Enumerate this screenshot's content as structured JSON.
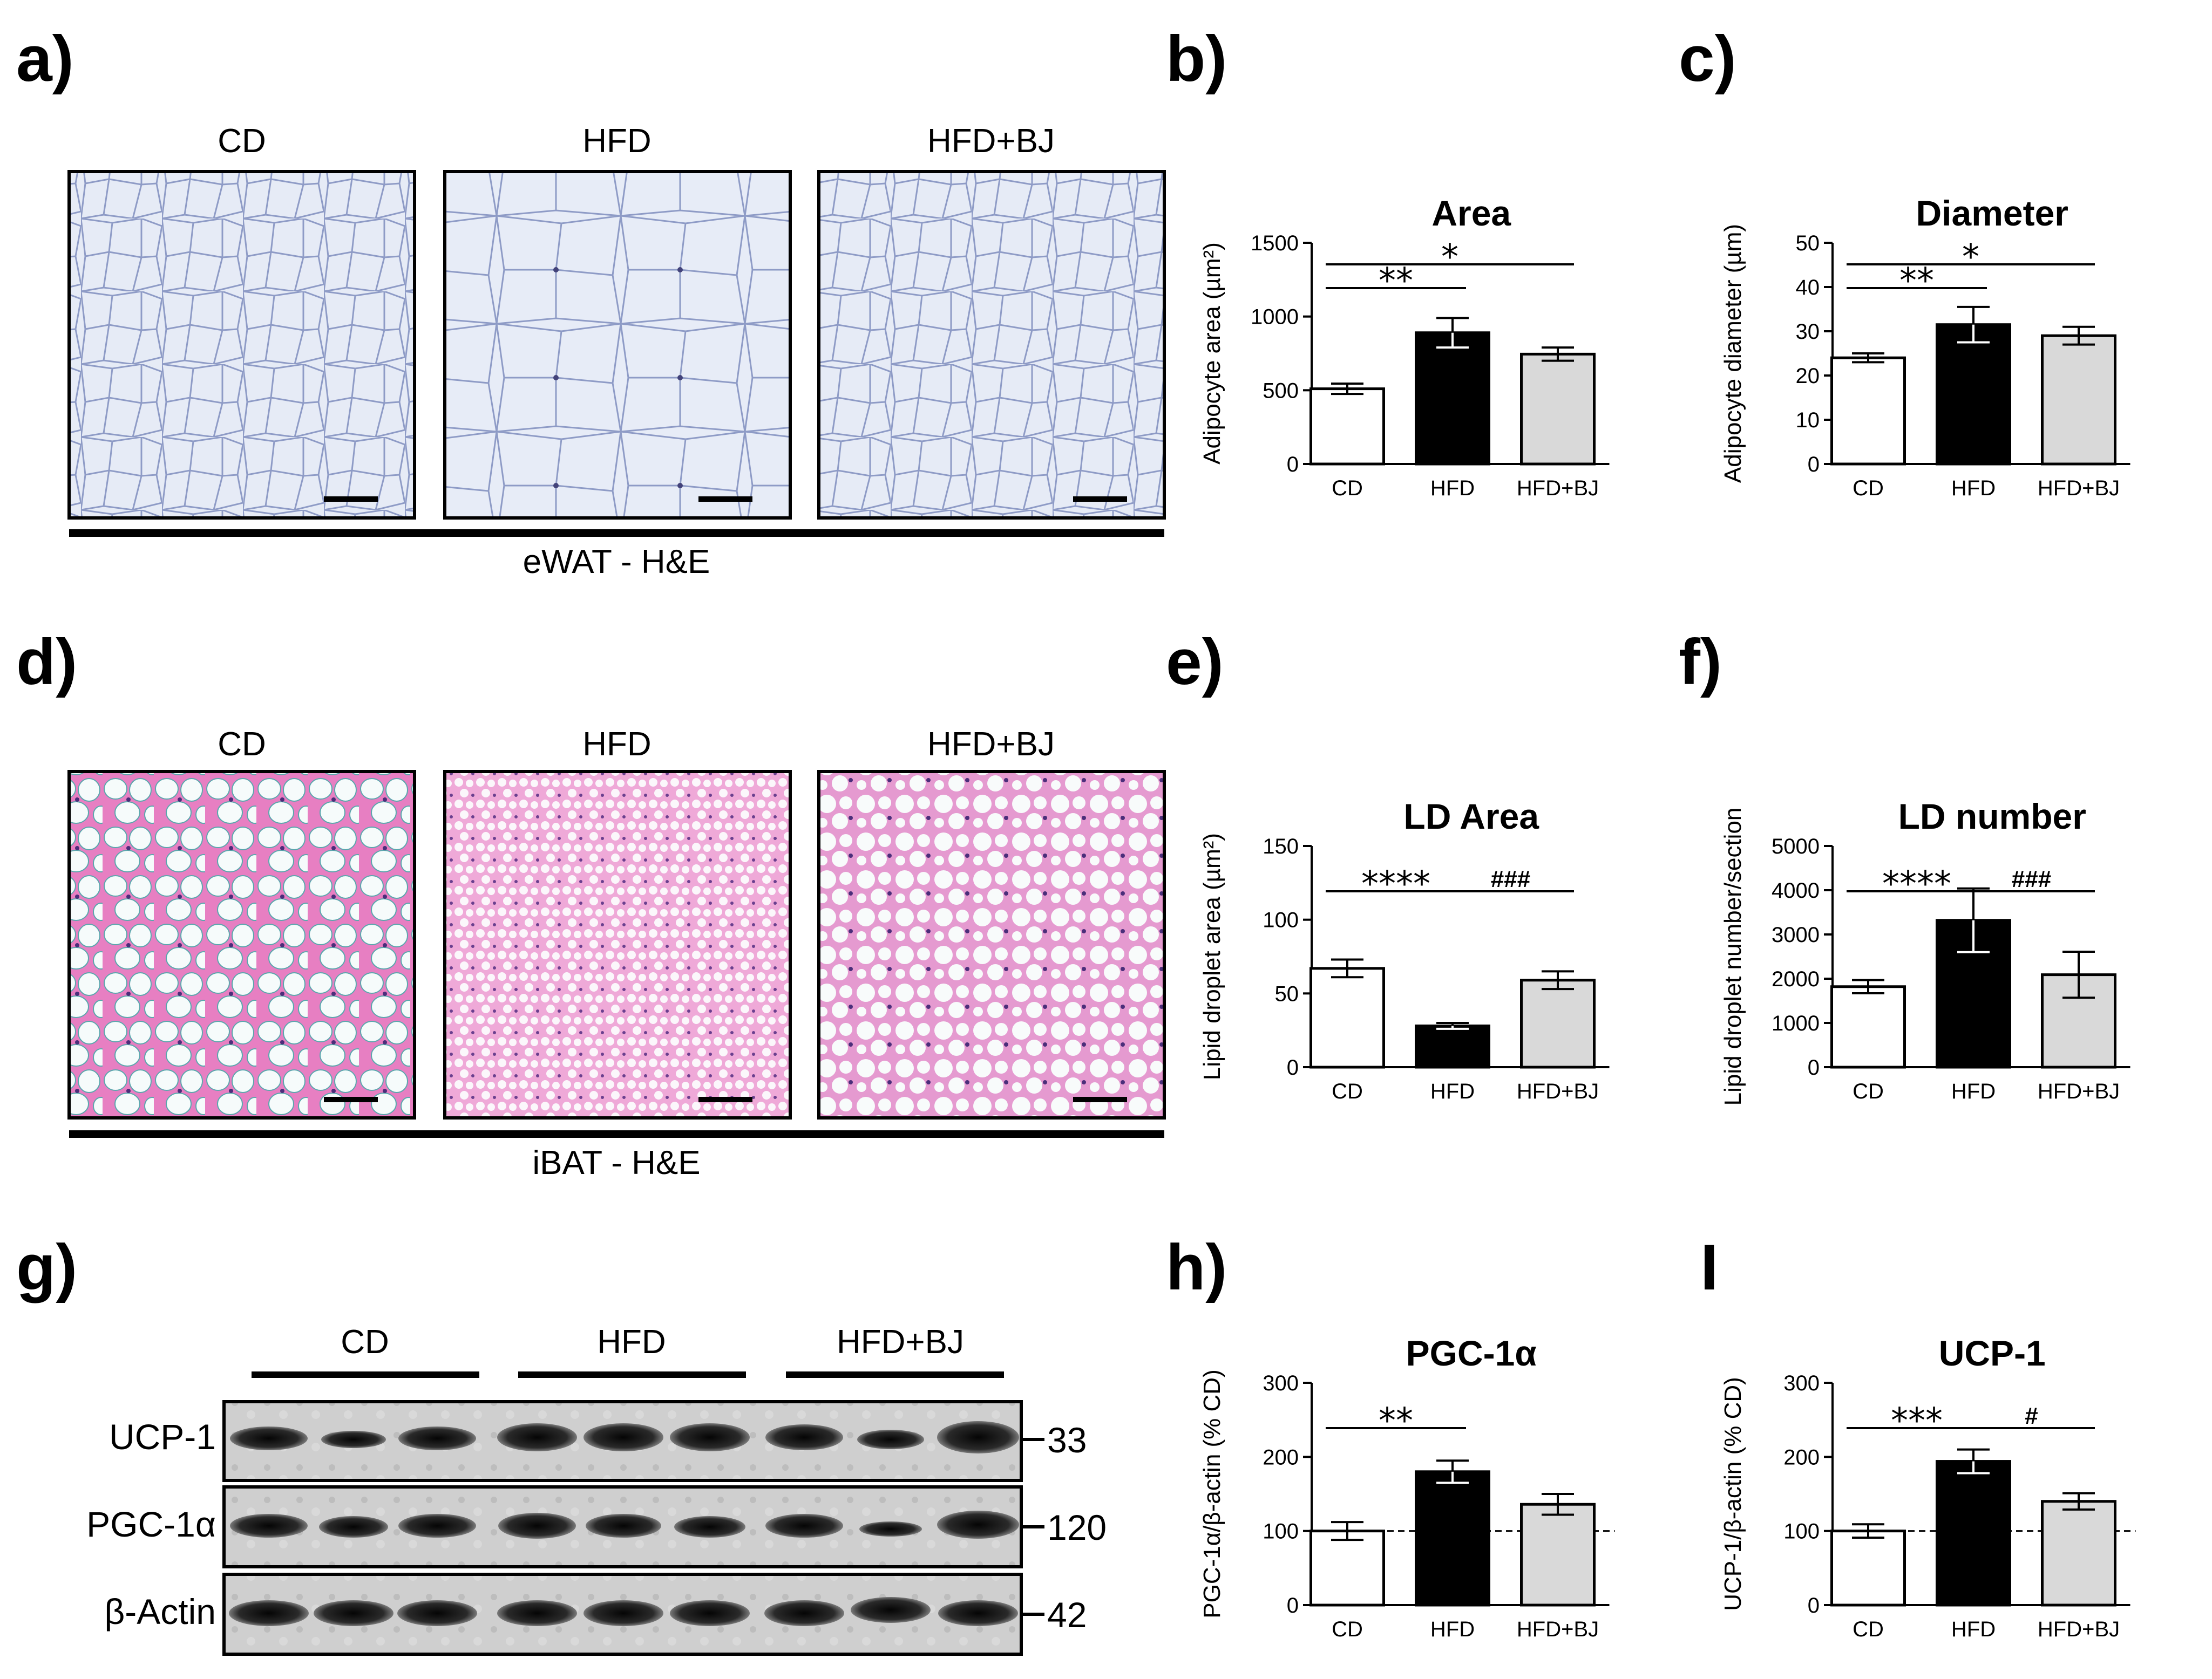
{
  "panels": {
    "a": {
      "label": "a)",
      "groups": [
        "CD",
        "HFD",
        "HFD+BJ"
      ],
      "caption": "eWAT - H&E"
    },
    "d": {
      "label": "d)",
      "groups": [
        "CD",
        "HFD",
        "HFD+BJ"
      ],
      "caption": "iBAT - H&E"
    },
    "g": {
      "label": "g)",
      "groups": [
        "CD",
        "HFD",
        "HFD+BJ"
      ],
      "rows": [
        {
          "name": "UCP-1",
          "kda": "33"
        },
        {
          "name": "PGC-1α",
          "kda": "120"
        },
        {
          "name": "β-Actin",
          "kda": "42"
        }
      ]
    }
  },
  "chart_data": [
    {
      "id": "b",
      "panel_label": "b)",
      "type": "bar",
      "title": "Area",
      "ylabel": "Adipocyte area (µm²)",
      "categories": [
        "CD",
        "HFD",
        "HFD+BJ"
      ],
      "values": [
        510,
        890,
        745
      ],
      "errors": [
        35,
        100,
        45
      ],
      "ylim": [
        0,
        1500
      ],
      "yticks": [
        0,
        500,
        1000,
        1500
      ],
      "bar_colors": [
        "#ffffff",
        "#000000",
        "#d9d9d9"
      ],
      "significance": [
        {
          "from": 0,
          "to": 1,
          "text": "**",
          "level": 1
        },
        {
          "from": 0,
          "to": 2,
          "text": "*",
          "level": 2
        }
      ]
    },
    {
      "id": "c",
      "panel_label": "c)",
      "type": "bar",
      "title": "Diameter",
      "ylabel": "Adipocyte diameter (µm)",
      "categories": [
        "CD",
        "HFD",
        "HFD+BJ"
      ],
      "values": [
        24,
        31.5,
        29
      ],
      "errors": [
        1,
        4,
        2
      ],
      "ylim": [
        0,
        50
      ],
      "yticks": [
        0,
        10,
        20,
        30,
        40,
        50
      ],
      "bar_colors": [
        "#ffffff",
        "#000000",
        "#d9d9d9"
      ],
      "significance": [
        {
          "from": 0,
          "to": 1,
          "text": "**",
          "level": 1
        },
        {
          "from": 0,
          "to": 2,
          "text": "*",
          "level": 2
        }
      ]
    },
    {
      "id": "e",
      "panel_label": "e)",
      "type": "bar",
      "title": "LD Area",
      "ylabel": "Lipid droplet area (µm²)",
      "categories": [
        "CD",
        "HFD",
        "HFD+BJ"
      ],
      "values": [
        67,
        28,
        59
      ],
      "errors": [
        6,
        2,
        6
      ],
      "ylim": [
        0,
        150
      ],
      "yticks": [
        0,
        50,
        100,
        150
      ],
      "bar_colors": [
        "#ffffff",
        "#000000",
        "#d9d9d9"
      ],
      "significance": [
        {
          "from": 0,
          "to": 1,
          "text": "****",
          "level": 1
        },
        {
          "from": 1,
          "to": 2,
          "text": "###",
          "level": 1
        }
      ]
    },
    {
      "id": "f",
      "panel_label": "f)",
      "type": "bar",
      "title": "LD number",
      "ylabel": "Lipid droplet number/section",
      "categories": [
        "CD",
        "HFD",
        "HFD+BJ"
      ],
      "values": [
        1820,
        3320,
        2090
      ],
      "errors": [
        150,
        720,
        520
      ],
      "ylim": [
        0,
        5000
      ],
      "yticks": [
        0,
        1000,
        2000,
        3000,
        4000,
        5000
      ],
      "bar_colors": [
        "#ffffff",
        "#000000",
        "#d9d9d9"
      ],
      "significance": [
        {
          "from": 0,
          "to": 1,
          "text": "****",
          "level": 1
        },
        {
          "from": 1,
          "to": 2,
          "text": "###",
          "level": 1
        }
      ]
    },
    {
      "id": "h",
      "panel_label": "h)",
      "type": "bar",
      "title": "PGC-1α",
      "ylabel": "PGC-1α/β-actin (% CD)",
      "categories": [
        "CD",
        "HFD",
        "HFD+BJ"
      ],
      "values": [
        100,
        180,
        136
      ],
      "errors": [
        12,
        15,
        14
      ],
      "ylim": [
        0,
        300
      ],
      "yticks": [
        0,
        100,
        200,
        300
      ],
      "reference_line": 100,
      "bar_colors": [
        "#ffffff",
        "#000000",
        "#d9d9d9"
      ],
      "significance": [
        {
          "from": 0,
          "to": 1,
          "text": "**",
          "level": 1
        }
      ]
    },
    {
      "id": "i",
      "panel_label": "I",
      "type": "bar",
      "title": "UCP-1",
      "ylabel": "UCP-1/β-actin (% CD)",
      "categories": [
        "CD",
        "HFD",
        "HFD+BJ"
      ],
      "values": [
        100,
        194,
        140
      ],
      "errors": [
        9,
        16,
        11
      ],
      "ylim": [
        0,
        300
      ],
      "yticks": [
        0,
        100,
        200,
        300
      ],
      "reference_line": 100,
      "bar_colors": [
        "#ffffff",
        "#000000",
        "#d9d9d9"
      ],
      "significance": [
        {
          "from": 0,
          "to": 1,
          "text": "***",
          "level": 1
        },
        {
          "from": 1,
          "to": 2,
          "text": "#",
          "level": 1
        }
      ]
    }
  ]
}
